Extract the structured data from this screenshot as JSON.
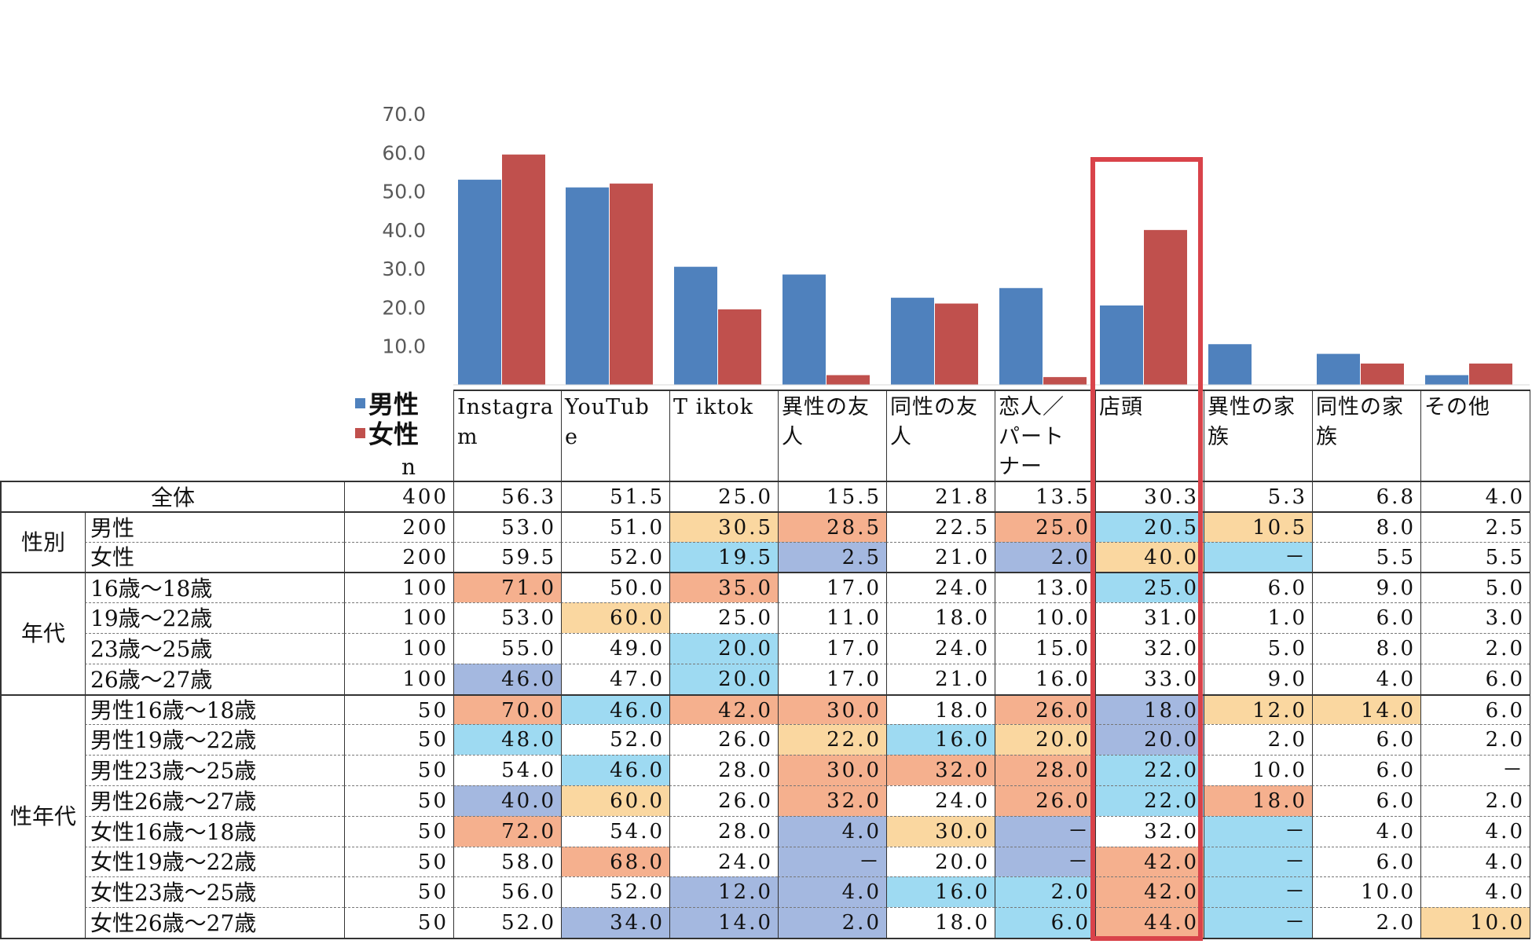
{
  "chart_data": {
    "type": "bar",
    "title": "",
    "xlabel": "",
    "ylabel": "",
    "ylim": [
      0,
      70
    ],
    "yticks": [
      "70.0",
      "60.0",
      "50.0",
      "40.0",
      "30.0",
      "20.0",
      "10.0"
    ],
    "categories": [
      "Instagram",
      "YouTube",
      "Tiktok",
      "異性の友人",
      "同性の友人",
      "恋人／パートナー",
      "店頭",
      "異性の家族",
      "同性の家族",
      "その他"
    ],
    "series": [
      {
        "name": "男性",
        "color": "#4f81bd",
        "values": [
          53.0,
          51.0,
          30.5,
          28.5,
          22.5,
          25.0,
          20.5,
          10.5,
          8.0,
          2.5
        ]
      },
      {
        "name": "女性",
        "color": "#c0504d",
        "values": [
          59.5,
          52.0,
          19.5,
          2.5,
          21.0,
          2.0,
          40.0,
          0,
          5.5,
          5.5
        ]
      }
    ],
    "highlight_category": "店頭"
  },
  "legend": {
    "male": "男性",
    "female": "女性"
  },
  "table": {
    "n_label": "n",
    "headers": [
      "Instagra m",
      "YouTub e",
      "T iktok",
      "異性の友 人",
      "同性の友 人",
      "恋人／ パート ナー",
      "店頭",
      "異性の家 族",
      "同性の家 族",
      "その他"
    ],
    "groups": [
      {
        "label": "",
        "rows": [
          {
            "label": "全体",
            "n": "400",
            "values": [
              "56.3",
              "51.5",
              "25.0",
              "15.5",
              "21.8",
              "13.5",
              "30.3",
              "5.3",
              "6.8",
              "4.0"
            ],
            "colors": [
              "",
              "",
              "",
              "",
              "",
              "",
              "",
              "",
              "",
              ""
            ]
          }
        ]
      },
      {
        "label": "性別",
        "rows": [
          {
            "label": "男性",
            "n": "200",
            "values": [
              "53.0",
              "51.0",
              "30.5",
              "28.5",
              "22.5",
              "25.0",
              "20.5",
              "10.5",
              "8.0",
              "2.5"
            ],
            "colors": [
              "",
              "",
              "#fad7a0",
              "#f5b08e",
              "",
              "#f5b08e",
              "#9edaf2",
              "#fad7a0",
              "",
              ""
            ]
          },
          {
            "label": "女性",
            "n": "200",
            "values": [
              "59.5",
              "52.0",
              "19.5",
              "2.5",
              "21.0",
              "2.0",
              "40.0",
              "－",
              "5.5",
              "5.5"
            ],
            "colors": [
              "",
              "",
              "#9edaf2",
              "#a4b8e0",
              "",
              "#a4b8e0",
              "#fad7a0",
              "#9edaf2",
              "",
              ""
            ]
          }
        ]
      },
      {
        "label": "年代",
        "rows": [
          {
            "label": "16歳～18歳",
            "n": "100",
            "values": [
              "71.0",
              "50.0",
              "35.0",
              "17.0",
              "24.0",
              "13.0",
              "25.0",
              "6.0",
              "9.0",
              "5.0"
            ],
            "colors": [
              "#f5b08e",
              "",
              "#f5b08e",
              "",
              "",
              "",
              "#9edaf2",
              "",
              "",
              ""
            ]
          },
          {
            "label": "19歳～22歳",
            "n": "100",
            "values": [
              "53.0",
              "60.0",
              "25.0",
              "11.0",
              "18.0",
              "10.0",
              "31.0",
              "1.0",
              "6.0",
              "3.0"
            ],
            "colors": [
              "",
              "#fad7a0",
              "",
              "",
              "",
              "",
              "",
              "",
              "",
              ""
            ]
          },
          {
            "label": "23歳～25歳",
            "n": "100",
            "values": [
              "55.0",
              "49.0",
              "20.0",
              "17.0",
              "24.0",
              "15.0",
              "32.0",
              "5.0",
              "8.0",
              "2.0"
            ],
            "colors": [
              "",
              "",
              "#9edaf2",
              "",
              "",
              "",
              "",
              "",
              "",
              ""
            ]
          },
          {
            "label": "26歳～27歳",
            "n": "100",
            "values": [
              "46.0",
              "47.0",
              "20.0",
              "17.0",
              "21.0",
              "16.0",
              "33.0",
              "9.0",
              "4.0",
              "6.0"
            ],
            "colors": [
              "#a4b8e0",
              "",
              "#9edaf2",
              "",
              "",
              "",
              "",
              "",
              "",
              ""
            ]
          }
        ]
      },
      {
        "label": "性年代",
        "rows": [
          {
            "label": "男性16歳～18歳",
            "n": "50",
            "values": [
              "70.0",
              "46.0",
              "42.0",
              "30.0",
              "18.0",
              "26.0",
              "18.0",
              "12.0",
              "14.0",
              "6.0"
            ],
            "colors": [
              "#f5b08e",
              "#9edaf2",
              "#f5b08e",
              "#f5b08e",
              "",
              "#f5b08e",
              "#a4b8e0",
              "#fad7a0",
              "#fad7a0",
              ""
            ]
          },
          {
            "label": "男性19歳～22歳",
            "n": "50",
            "values": [
              "48.0",
              "52.0",
              "26.0",
              "22.0",
              "16.0",
              "20.0",
              "20.0",
              "2.0",
              "6.0",
              "2.0"
            ],
            "colors": [
              "#9edaf2",
              "",
              "",
              "#fad7a0",
              "#9edaf2",
              "#fad7a0",
              "#a4b8e0",
              "",
              "",
              ""
            ]
          },
          {
            "label": "男性23歳～25歳",
            "n": "50",
            "values": [
              "54.0",
              "46.0",
              "28.0",
              "30.0",
              "32.0",
              "28.0",
              "22.0",
              "10.0",
              "6.0",
              "－"
            ],
            "colors": [
              "",
              "#9edaf2",
              "",
              "#f5b08e",
              "#f5b08e",
              "#f5b08e",
              "#9edaf2",
              "",
              "",
              ""
            ]
          },
          {
            "label": "男性26歳～27歳",
            "n": "50",
            "values": [
              "40.0",
              "60.0",
              "26.0",
              "32.0",
              "24.0",
              "26.0",
              "22.0",
              "18.0",
              "6.0",
              "2.0"
            ],
            "colors": [
              "#a4b8e0",
              "#fad7a0",
              "",
              "#f5b08e",
              "",
              "#f5b08e",
              "#9edaf2",
              "#f5b08e",
              "",
              ""
            ]
          },
          {
            "label": "女性16歳～18歳",
            "n": "50",
            "values": [
              "72.0",
              "54.0",
              "28.0",
              "4.0",
              "30.0",
              "－",
              "32.0",
              "－",
              "4.0",
              "4.0"
            ],
            "colors": [
              "#f5b08e",
              "",
              "",
              "#a4b8e0",
              "#fad7a0",
              "#a4b8e0",
              "",
              "#9edaf2",
              "",
              ""
            ]
          },
          {
            "label": "女性19歳～22歳",
            "n": "50",
            "values": [
              "58.0",
              "68.0",
              "24.0",
              "－",
              "20.0",
              "－",
              "42.0",
              "－",
              "6.0",
              "4.0"
            ],
            "colors": [
              "",
              "#f5b08e",
              "",
              "#a4b8e0",
              "",
              "#a4b8e0",
              "#f5b08e",
              "#9edaf2",
              "",
              ""
            ]
          },
          {
            "label": "女性23歳～25歳",
            "n": "50",
            "values": [
              "56.0",
              "52.0",
              "12.0",
              "4.0",
              "16.0",
              "2.0",
              "42.0",
              "－",
              "10.0",
              "4.0"
            ],
            "colors": [
              "",
              "",
              "#a4b8e0",
              "#a4b8e0",
              "#9edaf2",
              "#9edaf2",
              "#f5b08e",
              "#9edaf2",
              "",
              ""
            ]
          },
          {
            "label": "女性26歳～27歳",
            "n": "50",
            "values": [
              "52.0",
              "34.0",
              "14.0",
              "2.0",
              "18.0",
              "6.0",
              "44.0",
              "－",
              "2.0",
              "10.0"
            ],
            "colors": [
              "",
              "#a4b8e0",
              "#a4b8e0",
              "#a4b8e0",
              "",
              "#9edaf2",
              "#f5b08e",
              "#9edaf2",
              "",
              "#fad7a0"
            ]
          }
        ]
      }
    ]
  }
}
